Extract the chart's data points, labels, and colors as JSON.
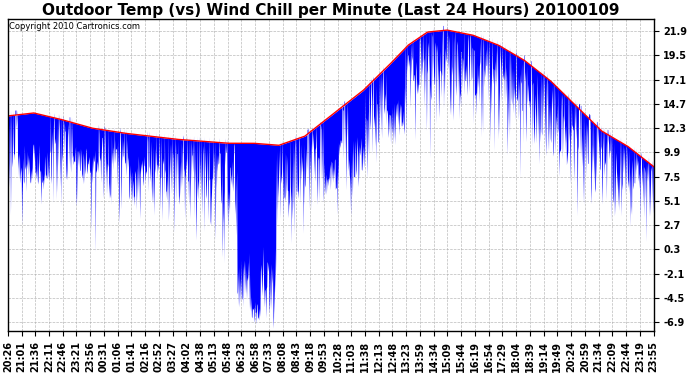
{
  "title": "Outdoor Temp (vs) Wind Chill per Minute (Last 24 Hours) 20100109",
  "copyright": "Copyright 2010 Cartronics.com",
  "yticks": [
    21.9,
    19.5,
    17.1,
    14.7,
    12.3,
    9.9,
    7.5,
    5.1,
    2.7,
    0.3,
    -2.1,
    -4.5,
    -6.9
  ],
  "ylim": [
    -7.8,
    23.1
  ],
  "xtick_labels": [
    "20:26",
    "21:01",
    "21:36",
    "22:11",
    "22:46",
    "23:21",
    "23:56",
    "00:31",
    "01:06",
    "01:41",
    "02:16",
    "02:52",
    "03:27",
    "04:02",
    "04:38",
    "05:13",
    "05:48",
    "06:23",
    "06:58",
    "07:33",
    "08:08",
    "08:43",
    "09:18",
    "09:53",
    "10:28",
    "11:03",
    "11:38",
    "12:13",
    "12:48",
    "13:23",
    "13:59",
    "14:34",
    "15:09",
    "15:44",
    "16:19",
    "16:54",
    "17:29",
    "18:04",
    "18:39",
    "19:14",
    "19:49",
    "20:24",
    "20:59",
    "21:34",
    "22:09",
    "22:44",
    "23:19",
    "23:55"
  ],
  "bg_color": "#ffffff",
  "grid_color": "#aaaaaa",
  "line_color_temp": "#ff0000",
  "line_color_windchill": "#0000ff",
  "title_fontsize": 11,
  "tick_fontsize": 7.0,
  "temp_keypoints_t": [
    0,
    0.04,
    0.08,
    0.13,
    0.18,
    0.22,
    0.26,
    0.3,
    0.34,
    0.38,
    0.42,
    0.46,
    0.5,
    0.55,
    0.59,
    0.62,
    0.65,
    0.68,
    0.72,
    0.76,
    0.8,
    0.84,
    0.88,
    0.92,
    0.96,
    1.0
  ],
  "temp_keypoints_v": [
    13.5,
    13.8,
    13.2,
    12.3,
    11.8,
    11.5,
    11.2,
    11.0,
    10.8,
    10.8,
    10.6,
    11.5,
    13.5,
    16.0,
    18.5,
    20.5,
    21.8,
    22.0,
    21.5,
    20.5,
    19.0,
    17.0,
    14.5,
    12.0,
    10.5,
    8.5
  ]
}
